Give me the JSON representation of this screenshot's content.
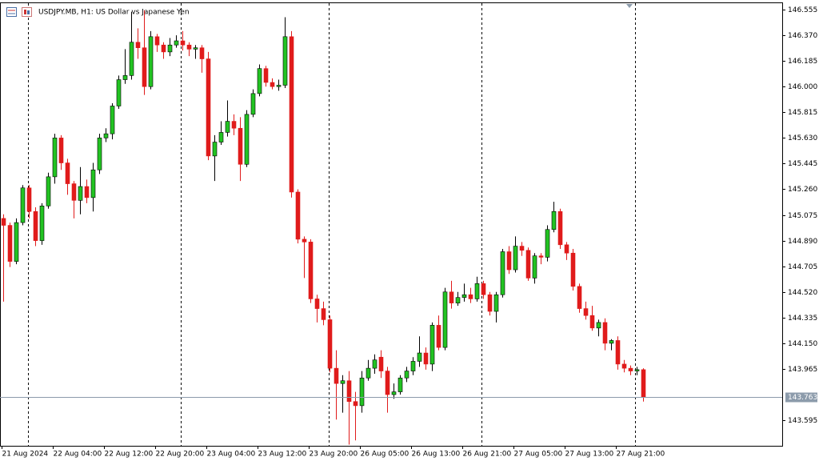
{
  "chart_data": {
    "type": "candlestick",
    "title": "USDJPY.MB, H1:  US Dollar vs Japanese Yen",
    "up_color": "#22c322",
    "down_color": "#e01b1b",
    "current_price": 143.763,
    "ylim": [
      143.411,
      146.607
    ],
    "yticks": [
      146.555,
      {
        "value": 146.37,
        "label": "146.370"
      },
      146.185,
      {
        "value": 146,
        "label": "146.000"
      },
      145.815,
      {
        "value": 145.63,
        "label": "145.630"
      },
      145.445,
      {
        "value": 145.26,
        "label": "145.260"
      },
      145.075,
      {
        "value": 144.89,
        "label": "144.890"
      },
      144.705,
      {
        "value": 144.52,
        "label": "144.520"
      },
      144.335,
      {
        "value": 144.15,
        "label": "144.150"
      },
      143.965,
      143.595
    ],
    "categories": [
      "21 Aug 2024",
      null,
      null,
      null,
      null,
      null,
      null,
      null,
      "22 Aug 04:00",
      null,
      null,
      null,
      null,
      null,
      null,
      null,
      "22 Aug 12:00",
      null,
      null,
      null,
      null,
      null,
      null,
      null,
      "22 Aug 20:00",
      null,
      null,
      null,
      null,
      null,
      null,
      null,
      "23 Aug 04:00",
      null,
      null,
      null,
      null,
      null,
      null,
      null,
      "23 Aug 12:00",
      null,
      null,
      null,
      null,
      null,
      null,
      null,
      "23 Aug 20:00",
      null,
      null,
      null,
      null,
      null,
      null,
      null,
      "26 Aug 05:00",
      null,
      null,
      null,
      null,
      null,
      null,
      null,
      "26 Aug 13:00",
      null,
      null,
      null,
      null,
      null,
      null,
      null,
      "26 Aug 21:00",
      null,
      null,
      null,
      null,
      null,
      null,
      null,
      "27 Aug 05:00",
      null,
      null,
      null,
      null,
      null,
      null,
      null,
      "27 Aug 13:00",
      null,
      null,
      null,
      null,
      null,
      null,
      null,
      "27 Aug 21:00",
      null,
      null,
      null,
      null
    ],
    "open": [
      145.05,
      145.0,
      144.74,
      145.02,
      145.27,
      145.1,
      144.89,
      145.14,
      145.35,
      145.63,
      145.45,
      145.3,
      145.18,
      145.28,
      145.2,
      145.4,
      145.63,
      145.66,
      145.86,
      146.05,
      146.08,
      146.32,
      146.28,
      146.0,
      146.36,
      146.3,
      146.25,
      146.3,
      146.33,
      146.3,
      146.27,
      146.28,
      146.2,
      145.5,
      145.6,
      145.67,
      145.75,
      145.7,
      145.44,
      145.8,
      145.95,
      146.13,
      146.03,
      146.0,
      146.01,
      146.36,
      145.24,
      144.9,
      144.88,
      144.47,
      144.4,
      144.32,
      143.97,
      143.86,
      143.88,
      143.73,
      143.7,
      143.9,
      143.97,
      144.05,
      143.95,
      143.78,
      143.8,
      143.9,
      143.95,
      144.02,
      144.08,
      144.0,
      144.28,
      144.12,
      144.52,
      144.44,
      144.48,
      144.5,
      144.47,
      144.58,
      144.5,
      144.38,
      144.5,
      144.81,
      144.68,
      144.85,
      144.82,
      144.62,
      144.78,
      144.77,
      144.97,
      145.1,
      144.86,
      144.8,
      144.56,
      144.4,
      144.35,
      144.26,
      144.3,
      144.15,
      144.17,
      144.0,
      143.97,
      143.95,
      143.96
    ],
    "high": [
      145.08,
      145.02,
      145.05,
      145.29,
      145.29,
      145.13,
      145.16,
      145.38,
      145.66,
      145.65,
      145.48,
      145.32,
      145.42,
      145.33,
      145.45,
      145.66,
      145.7,
      145.88,
      146.08,
      146.27,
      146.54,
      146.42,
      146.55,
      146.4,
      146.38,
      146.32,
      146.35,
      146.37,
      146.4,
      146.32,
      146.3,
      146.3,
      146.25,
      145.65,
      145.75,
      145.9,
      145.8,
      145.78,
      145.83,
      145.98,
      146.16,
      146.15,
      146.06,
      146.05,
      146.5,
      146.4,
      145.26,
      144.92,
      144.9,
      144.5,
      144.45,
      144.35,
      144.1,
      143.92,
      143.95,
      143.8,
      143.95,
      144.03,
      144.07,
      144.1,
      143.98,
      143.86,
      143.92,
      143.98,
      144.05,
      144.2,
      144.12,
      144.3,
      144.35,
      144.55,
      144.6,
      144.52,
      144.58,
      144.55,
      144.63,
      144.6,
      144.52,
      144.52,
      144.83,
      144.85,
      144.92,
      144.88,
      144.84,
      144.8,
      144.8,
      145.0,
      145.17,
      145.12,
      144.88,
      144.83,
      144.58,
      144.45,
      144.42,
      144.32,
      144.33,
      144.18,
      144.2,
      144.03,
      143.99,
      143.98,
      143.97
    ],
    "low": [
      144.45,
      144.7,
      144.72,
      145.0,
      145.05,
      144.85,
      144.86,
      145.12,
      145.3,
      145.4,
      145.22,
      145.05,
      145.08,
      145.16,
      145.1,
      145.37,
      145.6,
      145.62,
      145.84,
      146.02,
      146.05,
      146.2,
      145.94,
      145.98,
      146.25,
      146.2,
      146.22,
      146.28,
      146.26,
      146.22,
      146.2,
      146.1,
      145.47,
      145.32,
      145.58,
      145.64,
      145.65,
      145.32,
      145.42,
      145.78,
      145.93,
      146.0,
      145.98,
      145.97,
      145.99,
      145.2,
      144.87,
      144.62,
      144.44,
      144.3,
      144.28,
      143.94,
      143.6,
      143.65,
      143.42,
      143.45,
      143.65,
      143.88,
      143.93,
      143.9,
      143.65,
      143.75,
      143.78,
      143.87,
      143.92,
      143.98,
      143.96,
      143.95,
      144.1,
      144.1,
      144.4,
      144.42,
      144.45,
      144.44,
      144.45,
      144.47,
      144.35,
      144.3,
      144.48,
      144.65,
      144.66,
      144.78,
      144.6,
      144.58,
      144.72,
      144.74,
      144.95,
      144.83,
      144.75,
      144.53,
      144.37,
      144.32,
      144.24,
      144.2,
      144.1,
      144.1,
      143.96,
      143.94,
      143.92,
      143.92,
      143.73
    ],
    "close": [
      145.0,
      144.74,
      145.02,
      145.27,
      145.1,
      144.89,
      145.14,
      145.35,
      145.63,
      145.45,
      145.3,
      145.18,
      145.28,
      145.2,
      145.4,
      145.63,
      145.66,
      145.86,
      146.05,
      146.08,
      146.32,
      146.28,
      146.0,
      146.36,
      146.3,
      146.25,
      146.3,
      146.33,
      146.3,
      146.27,
      146.28,
      146.2,
      145.5,
      145.6,
      145.67,
      145.75,
      145.7,
      145.44,
      145.8,
      145.95,
      146.13,
      146.03,
      146.0,
      146.01,
      146.36,
      145.24,
      144.9,
      144.88,
      144.47,
      144.4,
      144.32,
      143.97,
      143.86,
      143.88,
      143.73,
      143.7,
      143.9,
      143.97,
      144.03,
      143.95,
      143.78,
      143.8,
      143.9,
      143.95,
      144.02,
      144.08,
      144.0,
      144.28,
      144.12,
      144.52,
      144.44,
      144.48,
      144.5,
      144.47,
      144.58,
      144.5,
      144.38,
      144.5,
      144.81,
      144.68,
      144.85,
      144.82,
      144.62,
      144.78,
      144.77,
      144.97,
      145.1,
      144.86,
      144.8,
      144.56,
      144.4,
      144.35,
      144.26,
      144.3,
      144.15,
      144.17,
      144.0,
      143.97,
      143.95,
      143.96,
      143.76
    ]
  }
}
